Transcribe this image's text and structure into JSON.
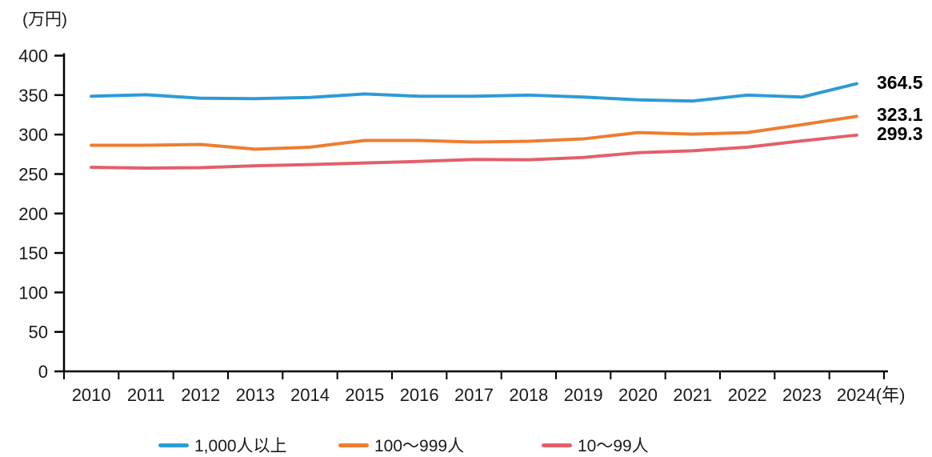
{
  "chart_data": {
    "type": "line",
    "title": "",
    "unit_label": "(万円)",
    "x_axis_suffix": "(年)",
    "x": [
      2010,
      2011,
      2012,
      2013,
      2014,
      2015,
      2016,
      2017,
      2018,
      2019,
      2020,
      2021,
      2022,
      2023,
      2024
    ],
    "ylim": [
      0,
      400
    ],
    "y_tick_step": 50,
    "grid": false,
    "legend_position": "bottom",
    "series": [
      {
        "name": "1,000人以上",
        "color": "#2E9BD5",
        "end_label": "364.5",
        "values": [
          348.5,
          350.5,
          346.0,
          345.5,
          347.0,
          351.5,
          348.5,
          348.5,
          350.0,
          347.5,
          344.0,
          342.5,
          350.0,
          347.5,
          364.5
        ]
      },
      {
        "name": "100〜999人",
        "color": "#ED7D31",
        "end_label": "323.1",
        "values": [
          286.5,
          286.5,
          287.5,
          281.5,
          284.0,
          292.5,
          292.5,
          290.5,
          291.5,
          294.5,
          302.5,
          300.5,
          302.5,
          312.5,
          323.1
        ]
      },
      {
        "name": "10〜99人",
        "color": "#E2606B",
        "end_label": "299.3",
        "values": [
          258.5,
          257.5,
          258.0,
          260.5,
          262.0,
          264.0,
          266.0,
          268.5,
          268.0,
          271.0,
          277.0,
          279.5,
          284.0,
          292.0,
          299.3
        ]
      }
    ]
  }
}
